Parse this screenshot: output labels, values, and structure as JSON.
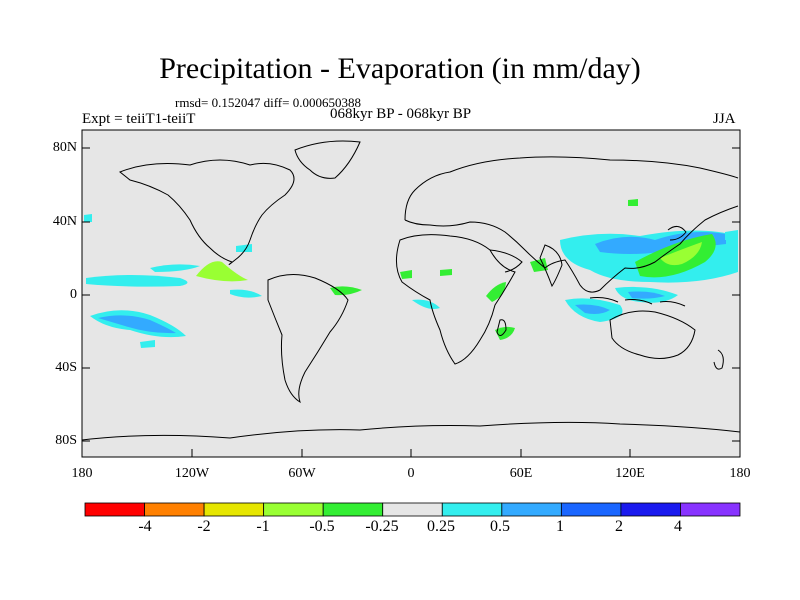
{
  "title": "Precipitation - Evaporation (in mm/day)",
  "stats": "rmsd= 0.152047 diff= 0.000650388",
  "period": "068kyr BP - 068kyr BP",
  "experiment": "Expt = teiiT1-teiiT",
  "season": "JJA",
  "axes": {
    "y_ticks": [
      "80N",
      "40N",
      "0",
      "40S",
      "80S"
    ],
    "x_ticks": [
      "180",
      "120W",
      "60W",
      "0",
      "60E",
      "120E",
      "180"
    ]
  },
  "colorbar": {
    "colors": [
      "#ff0000",
      "#ff8000",
      "#e6e600",
      "#99ff33",
      "#33ee33",
      "#e6e6e6",
      "#33eeee",
      "#33aaff",
      "#1a66ff",
      "#1a1aee",
      "#8833ff"
    ],
    "labels": [
      "-4",
      "-2",
      "-1",
      "-0.5",
      "-0.25",
      "0.25",
      "0.5",
      "1",
      "2",
      "4"
    ]
  },
  "colors": {
    "map_background": "#e6e6e6",
    "coastline": "#000000"
  }
}
